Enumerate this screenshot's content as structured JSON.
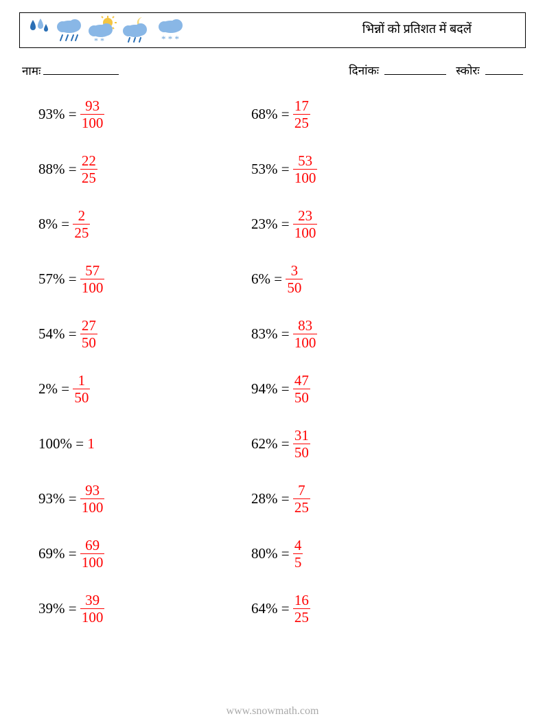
{
  "header": {
    "title": "भिन्नों को प्रतिशत में बदलें"
  },
  "meta": {
    "name_label": "नामः",
    "date_label": "दिनांकः",
    "score_label": "स्कोरः",
    "name_blank_width": 110,
    "date_blank_width": 90,
    "score_blank_width": 55
  },
  "columns": [
    [
      {
        "pct": "93%",
        "num": "93",
        "den": "100"
      },
      {
        "pct": "88%",
        "num": "22",
        "den": "25"
      },
      {
        "pct": "8%",
        "num": "2",
        "den": "25"
      },
      {
        "pct": "57%",
        "num": "57",
        "den": "100"
      },
      {
        "pct": "54%",
        "num": "27",
        "den": "50"
      },
      {
        "pct": "2%",
        "num": "1",
        "den": "50"
      },
      {
        "pct": "100%",
        "whole": "1"
      },
      {
        "pct": "93%",
        "num": "93",
        "den": "100"
      },
      {
        "pct": "69%",
        "num": "69",
        "den": "100"
      },
      {
        "pct": "39%",
        "num": "39",
        "den": "100"
      }
    ],
    [
      {
        "pct": "68%",
        "num": "17",
        "den": "25"
      },
      {
        "pct": "53%",
        "num": "53",
        "den": "100"
      },
      {
        "pct": "23%",
        "num": "23",
        "den": "100"
      },
      {
        "pct": "6%",
        "num": "3",
        "den": "50"
      },
      {
        "pct": "83%",
        "num": "83",
        "den": "100"
      },
      {
        "pct": "94%",
        "num": "47",
        "den": "50"
      },
      {
        "pct": "62%",
        "num": "31",
        "den": "50"
      },
      {
        "pct": "28%",
        "num": "7",
        "den": "25"
      },
      {
        "pct": "80%",
        "num": "4",
        "den": "5"
      },
      {
        "pct": "64%",
        "num": "16",
        "den": "25"
      }
    ]
  ],
  "footer": {
    "url": "www.snowmath.com"
  },
  "colors": {
    "answer": "#ff0000",
    "text": "#000000",
    "footer": "#a9a9a9",
    "cloud": "#89b7e6",
    "rain": "#2a6fb5",
    "sun": "#f4c542",
    "moon": "#f4d87a",
    "snow": "#6aa2d8"
  },
  "fontsize": {
    "title": 18,
    "meta": 17,
    "problem": 21,
    "footer": 16
  }
}
